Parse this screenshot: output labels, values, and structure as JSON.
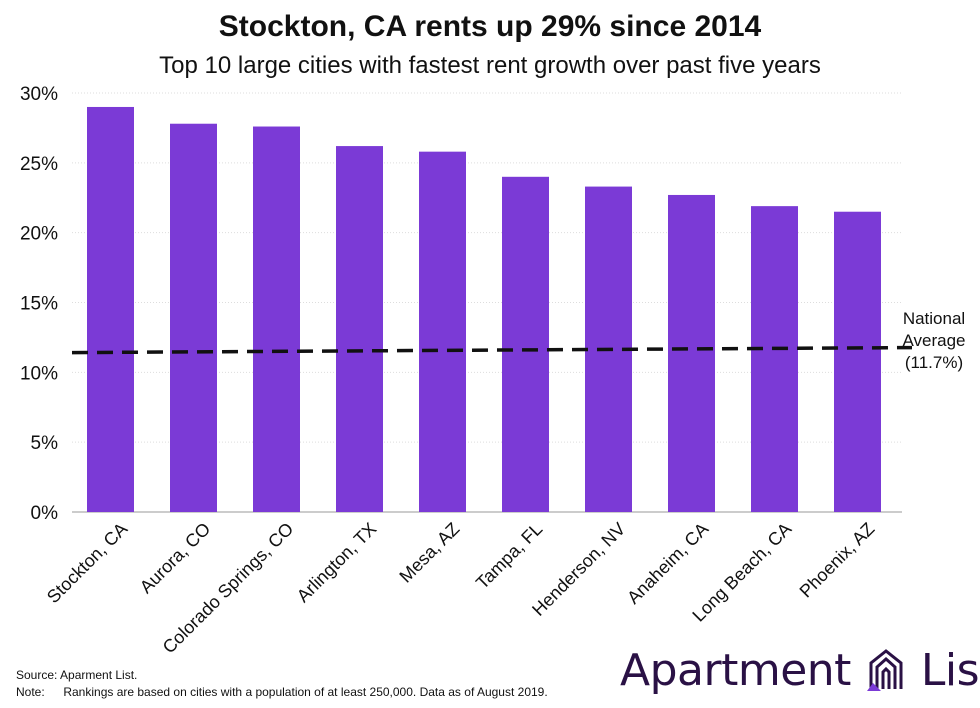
{
  "title": "Stockton, CA rents up 29% since 2014",
  "subtitle": "Top 10 large cities with fastest rent growth over past five years",
  "chart_data": {
    "type": "bar",
    "title": "Stockton, CA rents up 29% since 2014",
    "subtitle": "Top 10 large cities with fastest rent growth over past five years",
    "categories": [
      "Stockton, CA",
      "Aurora, CO",
      "Colorado Springs, CO",
      "Arlington, TX",
      "Mesa, AZ",
      "Tampa, FL",
      "Henderson, NV",
      "Anaheim, CA",
      "Long Beach, CA",
      "Phoenix, AZ"
    ],
    "values": [
      29.0,
      27.8,
      27.6,
      26.2,
      25.8,
      24.0,
      23.3,
      22.7,
      21.9,
      21.5
    ],
    "ylim": [
      0,
      30
    ],
    "yticks": [
      "0%",
      "5%",
      "10%",
      "15%",
      "20%",
      "25%",
      "30%"
    ],
    "xlabel": "",
    "ylabel": "",
    "grid": true,
    "bar_color": "#7b3ad6",
    "reference_line": {
      "value": 11.7,
      "style": "dashed",
      "label_lines": [
        "National",
        "Average",
        "(11.7%)"
      ]
    }
  },
  "footer": {
    "source": "Source: Aparment List.",
    "note_label": "Note:",
    "note_text": "Rankings are based on cities with a population of at least 250,000. Data as of August 2019."
  },
  "logo": {
    "word1": "Apartment",
    "word2": "List",
    "color": "#2a1145",
    "icon": "apartment-list-logo-icon"
  }
}
